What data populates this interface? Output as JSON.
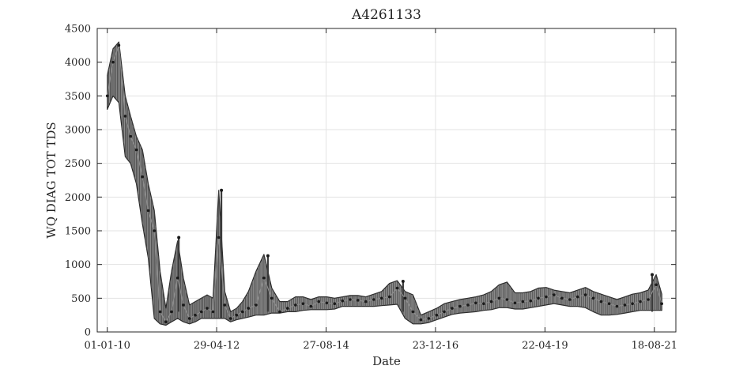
{
  "chart_data": {
    "type": "line",
    "title": "A4261133",
    "xlabel": "Date",
    "ylabel": "WQ DIAG TOT TDS",
    "xlim": [
      "2009-10-15",
      "2022-02-01"
    ],
    "ylim": [
      0,
      4500
    ],
    "grid": true,
    "x_ticks": [
      {
        "date": "2010-01-01",
        "label": "01-01-10"
      },
      {
        "date": "2012-04-29",
        "label": "29-04-12"
      },
      {
        "date": "2014-08-27",
        "label": "27-08-14"
      },
      {
        "date": "2016-12-23",
        "label": "23-12-16"
      },
      {
        "date": "2019-04-22",
        "label": "22-04-19"
      },
      {
        "date": "2021-08-18",
        "label": "18-08-21"
      }
    ],
    "y_ticks": [
      0,
      500,
      1000,
      1500,
      2000,
      2500,
      3000,
      3500,
      4000,
      4500
    ],
    "series": [
      {
        "line_color": "#8c8c8c",
        "marker_color": "#1a1a1a",
        "x": [
          "2010-01-01",
          "2010-02-15",
          "2010-04-01",
          "2010-05-20",
          "2010-07-01",
          "2010-08-15",
          "2010-10-01",
          "2010-11-15",
          "2011-01-01",
          "2011-02-15",
          "2011-04-01",
          "2011-05-15",
          "2011-07-01",
          "2011-08-15",
          "2011-10-01",
          "2011-11-15",
          "2012-01-01",
          "2012-02-15",
          "2012-04-01",
          "2012-05-15",
          "2012-07-01",
          "2012-08-15",
          "2012-10-01",
          "2012-11-15",
          "2013-01-01",
          "2013-03-01",
          "2013-05-01",
          "2013-07-01",
          "2013-09-01",
          "2013-11-01",
          "2014-01-01",
          "2014-03-01",
          "2014-05-01",
          "2014-07-01",
          "2014-09-01",
          "2014-11-01",
          "2015-01-01",
          "2015-03-01",
          "2015-05-01",
          "2015-07-01",
          "2015-09-01",
          "2015-11-01",
          "2016-01-01",
          "2016-03-01",
          "2016-05-01",
          "2016-07-01",
          "2016-09-01",
          "2016-11-01",
          "2017-01-01",
          "2017-03-01",
          "2017-05-01",
          "2017-07-01",
          "2017-09-01",
          "2017-11-01",
          "2018-01-01",
          "2018-03-01",
          "2018-05-01",
          "2018-07-01",
          "2018-09-01",
          "2018-11-01",
          "2019-01-01",
          "2019-03-01",
          "2019-05-01",
          "2019-07-01",
          "2019-09-01",
          "2019-11-01",
          "2020-01-01",
          "2020-03-01",
          "2020-05-01",
          "2020-07-01",
          "2020-09-01",
          "2020-11-01",
          "2021-01-01",
          "2021-03-01",
          "2021-05-01",
          "2021-07-01",
          "2021-09-01",
          "2021-10-15"
        ],
        "y": [
          3500,
          4000,
          4250,
          3200,
          2900,
          2700,
          2300,
          1800,
          1500,
          300,
          150,
          300,
          800,
          400,
          200,
          250,
          300,
          350,
          300,
          1400,
          400,
          200,
          250,
          300,
          350,
          400,
          800,
          500,
          300,
          350,
          400,
          420,
          380,
          450,
          430,
          420,
          460,
          480,
          470,
          450,
          480,
          500,
          520,
          650,
          500,
          300,
          180,
          200,
          250,
          300,
          350,
          380,
          400,
          430,
          420,
          450,
          500,
          480,
          430,
          450,
          460,
          500,
          520,
          550,
          500,
          480,
          520,
          550,
          500,
          450,
          420,
          380,
          400,
          420,
          450,
          480,
          700,
          420
        ],
        "band_low": [
          3300,
          3500,
          3400,
          2600,
          2500,
          2200,
          1600,
          1100,
          200,
          120,
          100,
          150,
          200,
          150,
          120,
          150,
          200,
          200,
          200,
          200,
          200,
          150,
          180,
          200,
          220,
          250,
          250,
          280,
          280,
          300,
          300,
          320,
          330,
          330,
          330,
          340,
          380,
          380,
          380,
          380,
          380,
          390,
          400,
          410,
          200,
          120,
          120,
          140,
          180,
          220,
          260,
          280,
          290,
          300,
          320,
          330,
          360,
          360,
          340,
          340,
          360,
          380,
          400,
          420,
          400,
          380,
          380,
          360,
          300,
          250,
          250,
          260,
          280,
          300,
          320,
          320,
          320,
          320
        ],
        "band_high": [
          3800,
          4200,
          4300,
          3500,
          3200,
          2900,
          2700,
          2200,
          1800,
          900,
          350,
          900,
          1350,
          800,
          400,
          450,
          500,
          550,
          500,
          2100,
          600,
          300,
          350,
          450,
          600,
          900,
          1150,
          650,
          450,
          450,
          520,
          520,
          480,
          520,
          520,
          500,
          520,
          540,
          540,
          520,
          560,
          600,
          720,
          760,
          600,
          550,
          250,
          300,
          350,
          420,
          450,
          480,
          500,
          520,
          550,
          600,
          700,
          740,
          580,
          580,
          600,
          650,
          660,
          620,
          600,
          580,
          620,
          660,
          600,
          560,
          520,
          480,
          520,
          560,
          580,
          620,
          850,
          560
        ],
        "spikes": [
          {
            "date": "2011-07-10",
            "low": 300,
            "high": 1400
          },
          {
            "date": "2012-06-05",
            "low": 200,
            "high": 2100
          },
          {
            "date": "2013-06-01",
            "low": 300,
            "high": 1130
          },
          {
            "date": "2016-04-15",
            "low": 300,
            "high": 750
          },
          {
            "date": "2021-08-01",
            "low": 300,
            "high": 850
          }
        ]
      }
    ]
  }
}
